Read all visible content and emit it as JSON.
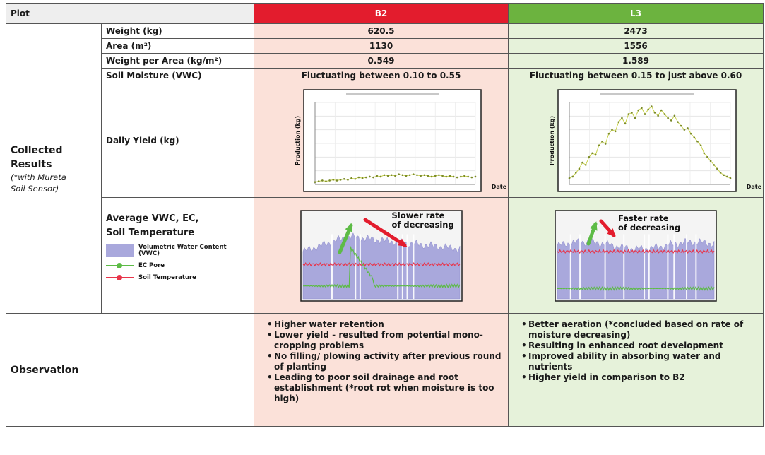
{
  "header": {
    "plot": "Plot",
    "b2": "B2",
    "l3": "L3"
  },
  "category": {
    "title_line1": "Collected",
    "title_line2": "Results",
    "sub_line1": "(*with Murata",
    "sub_line2": "Soil Sensor)"
  },
  "rows": {
    "weight": {
      "label": "Weight (kg)",
      "b2": "620.5",
      "l3": "2473"
    },
    "area": {
      "label": "Area (m²)",
      "b2": "1130",
      "l3": "1556"
    },
    "wpa": {
      "label": "Weight per Area (kg/m²)",
      "b2": "0.549",
      "l3": "1.589"
    },
    "moisture": {
      "label": "Soil Moisture (VWC)",
      "b2": "Fluctuating between 0.10 to 0.55",
      "l3": "Fluctuating between 0.15 to just above 0.60"
    },
    "daily_yield": {
      "label": "Daily Yield (kg)"
    },
    "avg": {
      "label_line1": "Average VWC, EC,",
      "label_line2": "Soil Temperature"
    }
  },
  "daily_charts": {
    "ylabel": "Production (kg)",
    "xlabel": "Date"
  },
  "legend": {
    "vwc_line1": "Volumetric Water Content",
    "vwc_line2": "(VWC)",
    "ec": "EC Pore",
    "temp": "Soil Temperature"
  },
  "annotations": {
    "b2_line1": "Slower rate",
    "b2_line2": "of decreasing",
    "l3_line1": "Faster rate",
    "l3_line2": "of decreasing"
  },
  "observation": {
    "label": "Observation",
    "b2": [
      "Higher water retention",
      "Lower yield - resulted from potential mono-cropping problems",
      "No filling/ plowing activity after previous round of planting",
      "Leading to poor soil drainage and root establishment (*root rot when moisture is too high)"
    ],
    "l3": [
      "Better aeration (*concluded based on rate of moisture decreasing)",
      "Resulting in enhanced root development",
      "Improved ability in absorbing water and nutrients",
      "Higher yield in comparison to B2"
    ]
  },
  "colors": {
    "b2_header": "#e31c2d",
    "l3_header": "#6cb33f",
    "b2_cell": "#fbe1d9",
    "l3_cell": "#e6f2da",
    "vwc_area": "#a9a8dc",
    "ec_line": "#5dbb46",
    "temp_line": "#e8344a"
  },
  "chart_data": [
    {
      "type": "line",
      "name": "B2 daily yield",
      "xlabel": "Date",
      "ylabel": "Production (kg)",
      "values": [
        3,
        4,
        5,
        4,
        5,
        6,
        5,
        6,
        7,
        6,
        8,
        7,
        9,
        8,
        9,
        10,
        9,
        11,
        10,
        12,
        11,
        12,
        11,
        13,
        12,
        11,
        12,
        13,
        12,
        11,
        12,
        11,
        10,
        11,
        12,
        11,
        10,
        11,
        10,
        9,
        10,
        11,
        10,
        9,
        10
      ]
    },
    {
      "type": "line",
      "name": "L3 daily yield",
      "xlabel": "Date",
      "ylabel": "Production (kg)",
      "values": [
        8,
        10,
        15,
        20,
        28,
        25,
        35,
        40,
        38,
        50,
        55,
        52,
        65,
        70,
        68,
        80,
        85,
        78,
        90,
        92,
        85,
        95,
        98,
        90,
        96,
        100,
        92,
        88,
        95,
        90,
        85,
        82,
        88,
        80,
        75,
        70,
        72,
        65,
        60,
        55,
        50,
        40,
        35,
        30,
        25,
        20,
        15,
        12,
        10,
        8
      ]
    }
  ]
}
